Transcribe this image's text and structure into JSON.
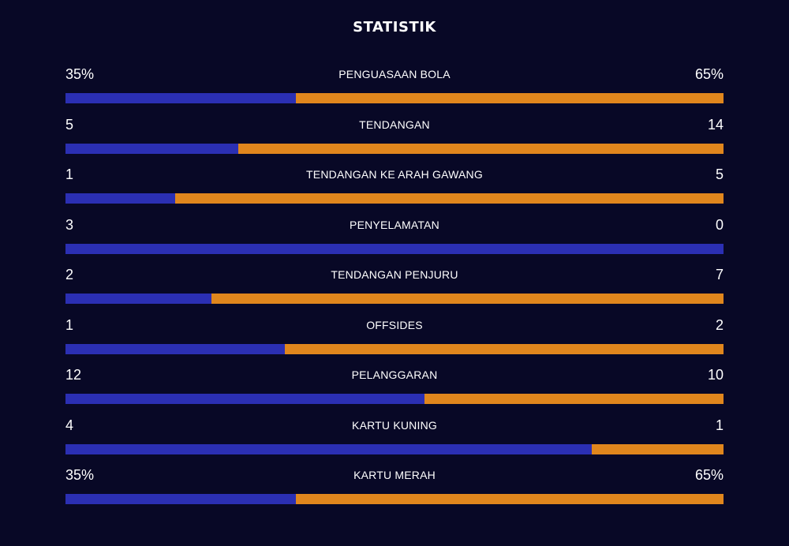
{
  "title": "STATISTIK",
  "colors": {
    "background": "#080826",
    "home_bar": "#2b2fb3",
    "away_bar": "#e0861d",
    "text": "#ffffff"
  },
  "stats": [
    {
      "label": "PENGUASAAN BOLA",
      "home": "35%",
      "away": "65%",
      "home_share": 0.35
    },
    {
      "label": "TENDANGAN",
      "home": "5",
      "away": "14",
      "home_share": 0.263
    },
    {
      "label": "TENDANGAN KE ARAH GAWANG",
      "home": "1",
      "away": "5",
      "home_share": 0.167
    },
    {
      "label": "PENYELAMATAN",
      "home": "3",
      "away": "0",
      "home_share": 1.0
    },
    {
      "label": "TENDANGAN PENJURU",
      "home": "2",
      "away": "7",
      "home_share": 0.222
    },
    {
      "label": "OFFSIDES",
      "home": "1",
      "away": "2",
      "home_share": 0.333
    },
    {
      "label": "PELANGGARAN",
      "home": "12",
      "away": "10",
      "home_share": 0.545
    },
    {
      "label": "KARTU KUNING",
      "home": "4",
      "away": "1",
      "home_share": 0.8
    },
    {
      "label": "KARTU MERAH",
      "home": "35%",
      "away": "65%",
      "home_share": 0.35
    }
  ]
}
